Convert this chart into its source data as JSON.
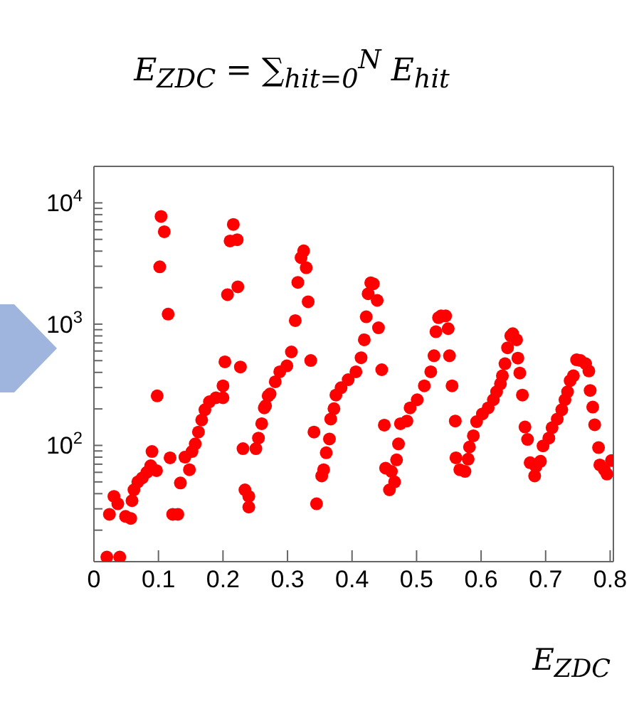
{
  "chart_data": {
    "type": "scatter",
    "title": "E$_{ZDC}$ = ∑$_{hit=0}$$^{N}$ E$_{hit}$",
    "xlabel": "E$_{ZDC}$",
    "log": "y",
    "marker": "circle",
    "xlim": [
      0,
      0.805
    ],
    "xticks": [
      0,
      0.1,
      0.2,
      0.3,
      0.4,
      0.5,
      0.6,
      0.7,
      0.8
    ],
    "ylim": [
      11,
      20000
    ],
    "yticks": [
      {
        "value": 20,
        "label": null
      },
      {
        "value": 30,
        "label": null
      },
      {
        "value": 40,
        "label": null
      },
      {
        "value": 50,
        "label": null
      },
      {
        "value": 60,
        "label": null
      },
      {
        "value": 70,
        "label": null
      },
      {
        "value": 80,
        "label": null
      },
      {
        "value": 90,
        "label": null
      },
      {
        "value": 100,
        "label": "10$^{2}$"
      },
      {
        "value": 200,
        "label": null
      },
      {
        "value": 300,
        "label": null
      },
      {
        "value": 400,
        "label": null
      },
      {
        "value": 500,
        "label": null
      },
      {
        "value": 600,
        "label": null
      },
      {
        "value": 700,
        "label": null
      },
      {
        "value": 800,
        "label": null
      },
      {
        "value": 900,
        "label": null
      },
      {
        "value": 1000,
        "label": "10$^{3}$"
      },
      {
        "value": 2000,
        "label": null
      },
      {
        "value": 3000,
        "label": null
      },
      {
        "value": 4000,
        "label": null
      },
      {
        "value": 5000,
        "label": null
      },
      {
        "value": 6000,
        "label": null
      },
      {
        "value": 7000,
        "label": null
      },
      {
        "value": 8000,
        "label": null
      },
      {
        "value": 9000,
        "label": null
      },
      {
        "value": 10000,
        "label": "10$^{4}$"
      }
    ],
    "series": [
      {
        "color": "#ff0000",
        "x": [
          0.02,
          0.04,
          0.024,
          0.031,
          0.037,
          0.049,
          0.057,
          0.059,
          0.062,
          0.068,
          0.075,
          0.082,
          0.088,
          0.097,
          0.09,
          0.098,
          0.102,
          0.104,
          0.109,
          0.115,
          0.118,
          0.122,
          0.13,
          0.134,
          0.141,
          0.148,
          0.152,
          0.157,
          0.162,
          0.167,
          0.172,
          0.179,
          0.189,
          0.2,
          0.2,
          0.203,
          0.207,
          0.211,
          0.216,
          0.222,
          0.223,
          0.227,
          0.231,
          0.234,
          0.24,
          0.24,
          0.251,
          0.255,
          0.26,
          0.264,
          0.27,
          0.266,
          0.273,
          0.281,
          0.288,
          0.299,
          0.306,
          0.312,
          0.316,
          0.321,
          0.325,
          0.329,
          0.332,
          0.336,
          0.341,
          0.345,
          0.353,
          0.356,
          0.36,
          0.365,
          0.367,
          0.372,
          0.375,
          0.383,
          0.394,
          0.406,
          0.414,
          0.419,
          0.422,
          0.425,
          0.429,
          0.433,
          0.439,
          0.441,
          0.446,
          0.45,
          0.452,
          0.461,
          0.466,
          0.458,
          0.469,
          0.472,
          0.475,
          0.485,
          0.49,
          0.501,
          0.512,
          0.522,
          0.527,
          0.53,
          0.534,
          0.538,
          0.545,
          0.549,
          0.551,
          0.555,
          0.56,
          0.561,
          0.567,
          0.575,
          0.58,
          0.582,
          0.588,
          0.593,
          0.602,
          0.611,
          0.619,
          0.624,
          0.63,
          0.633,
          0.637,
          0.641,
          0.646,
          0.649,
          0.655,
          0.657,
          0.66,
          0.664,
          0.668,
          0.672,
          0.676,
          0.685,
          0.683,
          0.692,
          0.696,
          0.705,
          0.71,
          0.718,
          0.725,
          0.73,
          0.734,
          0.738,
          0.743,
          0.748,
          0.754,
          0.762,
          0.767,
          0.769,
          0.773,
          0.776,
          0.782,
          0.784,
          0.791,
          0.795,
          0.802
        ],
        "values": [
          12,
          12,
          27,
          38,
          33,
          26,
          25,
          35,
          43,
          50,
          54,
          60,
          68,
          62,
          89,
          256,
          2970,
          7730,
          5780,
          1210,
          79,
          27,
          27,
          49,
          80,
          63,
          89,
          103,
          129,
          162,
          197,
          229,
          247,
          247,
          310,
          489,
          1750,
          4850,
          6640,
          4970,
          2030,
          443,
          94,
          43,
          38,
          31,
          94,
          115,
          151,
          204,
          256,
          212,
          266,
          335,
          405,
          453,
          590,
          1070,
          2210,
          3530,
          4020,
          2920,
          1530,
          501,
          129,
          33,
          56,
          63,
          87,
          113,
          165,
          201,
          260,
          299,
          348,
          405,
          528,
          743,
          1150,
          1780,
          2190,
          2150,
          1570,
          933,
          421,
          147,
          65,
          61,
          50,
          43,
          76,
          103,
          151,
          159,
          204,
          238,
          310,
          405,
          549,
          866,
          1130,
          1170,
          1170,
          918,
          549,
          310,
          159,
          79,
          63,
          61,
          77,
          97,
          120,
          157,
          182,
          204,
          238,
          277,
          322,
          375,
          472,
          638,
          802,
          835,
          743,
          525,
          395,
          260,
          142,
          112,
          72,
          67,
          56,
          74,
          99,
          115,
          140,
          165,
          197,
          238,
          277,
          342,
          375,
          508,
          501,
          472,
          411,
          284,
          207,
          148,
          96,
          69,
          63,
          58,
          75
        ]
      }
    ]
  }
}
